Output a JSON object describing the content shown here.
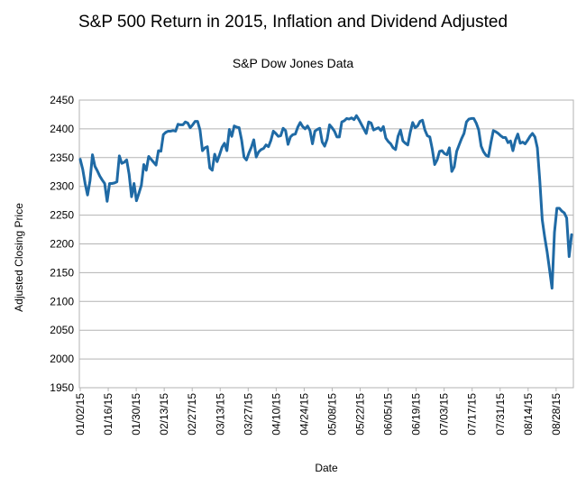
{
  "chart_data": {
    "type": "line",
    "title": "S&P 500 Return in 2015, Inflation and Dividend Adjusted",
    "subtitle": "S&P Dow Jones Data",
    "xlabel": "Date",
    "ylabel": "Adjusted Closing Price",
    "ylim": [
      1950,
      2450
    ],
    "y_ticks": [
      1950,
      2000,
      2050,
      2100,
      2150,
      2200,
      2250,
      2300,
      2350,
      2400,
      2450
    ],
    "x_ticks": [
      "01/02/15",
      "01/16/15",
      "01/30/15",
      "02/13/15",
      "02/27/15",
      "03/13/15",
      "03/27/15",
      "04/10/15",
      "04/24/15",
      "05/08/15",
      "05/22/15",
      "06/05/15",
      "06/19/15",
      "07/03/15",
      "07/17/15",
      "07/31/15",
      "08/14/15",
      "08/28/15"
    ],
    "grid": "horizontal",
    "legend": "none",
    "line_color": "#1f6aa5",
    "series": [
      {
        "values": [
          2347,
          2330,
          2305,
          2285,
          2310,
          2355,
          2335,
          2327,
          2318,
          2311,
          2305,
          2274,
          2305,
          2305,
          2306,
          2308,
          2353,
          2340,
          2342,
          2346,
          2321,
          2282,
          2305,
          2275,
          2288,
          2302,
          2338,
          2328,
          2352,
          2347,
          2342,
          2337,
          2362,
          2361,
          2390,
          2394,
          2396,
          2396,
          2397,
          2396,
          2408,
          2407,
          2407,
          2412,
          2410,
          2402,
          2407,
          2413,
          2413,
          2398,
          2362,
          2367,
          2369,
          2332,
          2328,
          2356,
          2343,
          2355,
          2368,
          2375,
          2362,
          2399,
          2387,
          2405,
          2403,
          2402,
          2381,
          2351,
          2346,
          2358,
          2368,
          2381,
          2351,
          2360,
          2364,
          2366,
          2372,
          2369,
          2380,
          2396,
          2392,
          2387,
          2388,
          2401,
          2397,
          2373,
          2386,
          2390,
          2391,
          2403,
          2411,
          2404,
          2400,
          2405,
          2397,
          2374,
          2396,
          2399,
          2401,
          2377,
          2370,
          2382,
          2407,
          2402,
          2396,
          2386,
          2386,
          2412,
          2414,
          2418,
          2417,
          2419,
          2416,
          2423,
          2416,
          2408,
          2400,
          2392,
          2412,
          2410,
          2398,
          2400,
          2402,
          2397,
          2404,
          2384,
          2378,
          2374,
          2367,
          2364,
          2387,
          2398,
          2379,
          2375,
          2372,
          2394,
          2411,
          2402,
          2405,
          2413,
          2415,
          2398,
          2388,
          2386,
          2365,
          2338,
          2346,
          2361,
          2362,
          2357,
          2355,
          2367,
          2326,
          2334,
          2361,
          2372,
          2383,
          2392,
          2412,
          2417,
          2418,
          2418,
          2410,
          2398,
          2370,
          2360,
          2354,
          2352,
          2376,
          2397,
          2395,
          2392,
          2388,
          2385,
          2385,
          2376,
          2379,
          2362,
          2380,
          2391,
          2375,
          2377,
          2374,
          2380,
          2387,
          2392,
          2386,
          2367,
          2310,
          2242,
          2212,
          2186,
          2155,
          2123,
          2220,
          2262,
          2262,
          2257,
          2254,
          2245,
          2178,
          2216
        ]
      }
    ]
  }
}
